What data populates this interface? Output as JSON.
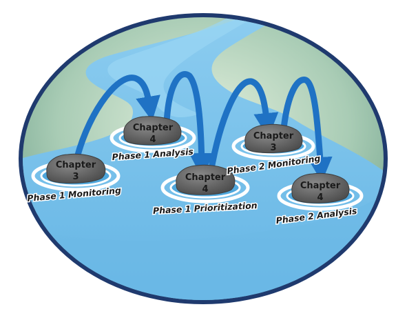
{
  "stepping_stones": [
    {
      "id": "p1-monitoring",
      "rock_line1": "Chapter",
      "rock_line2": "3",
      "caption": "Phase 1 Monitoring"
    },
    {
      "id": "p1-analysis",
      "rock_line1": "Chapter",
      "rock_line2": "4",
      "caption": "Phase 1 Analysis"
    },
    {
      "id": "p1-prioritization",
      "rock_line1": "Chapter",
      "rock_line2": "4",
      "caption": "Phase 1 Prioritization"
    },
    {
      "id": "p2-monitoring",
      "rock_line1": "Chapter",
      "rock_line2": "3",
      "caption": "Phase 2 Monitoring"
    },
    {
      "id": "p2-analysis",
      "rock_line1": "Chapter",
      "rock_line2": "4",
      "caption": "Phase 2 Analysis"
    }
  ],
  "colors": {
    "frame": "#1f3a6e",
    "land": "#8fb8a3",
    "land_light": "#cfe3cf",
    "river": "#7fc4ea",
    "river_dark": "#4fa7dc",
    "arrow": "#1f72c4",
    "rock": "#6b6b6b",
    "ring": "#ffffff"
  }
}
